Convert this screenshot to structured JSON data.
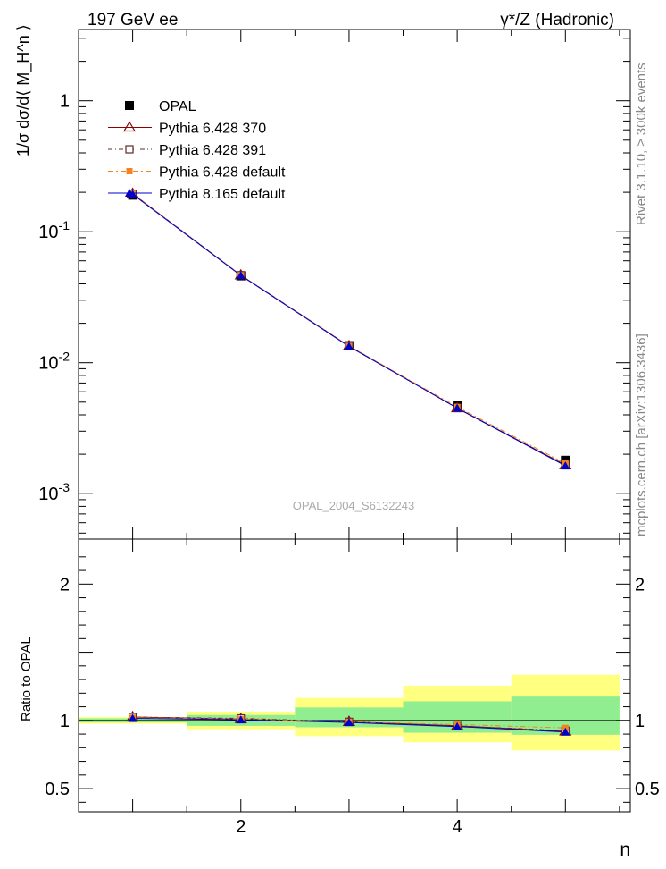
{
  "header": {
    "left": "197 GeV ee",
    "right": "γ*/Z (Hadronic)"
  },
  "side": {
    "rivet": "Rivet 3.1.10, ≥ 300k events",
    "mcplots": "mcplots.cern.ch [arXiv:1306.3436]"
  },
  "labels": {
    "ylabel_main": "1/σ dσ/d⟨ M_H^n ⟩",
    "ylabel_ratio": "Ratio to OPAL",
    "xlabel": "n",
    "analysis_id": "OPAL_2004_S6132243"
  },
  "colors": {
    "opal": "#000000",
    "py370": "#8B0000",
    "py391": "#5C2A2A",
    "py_default": "#F58220",
    "py8": "#0000CC",
    "band_inner": "#90EE90",
    "band_outer": "#FFFF80"
  },
  "chart_data": [
    {
      "type": "scatter",
      "name": "main",
      "title": "γ*/Z (Hadronic)",
      "xlabel": "n",
      "ylabel": "1/σ dσ/d⟨ M_H^n ⟩",
      "yscale": "log",
      "xlim": [
        0.5,
        5.6
      ],
      "ylim": [
        0.00045,
        3.5
      ],
      "yticks": [
        {
          "value": 1,
          "label": "1"
        },
        {
          "value": 0.1,
          "label": "10^-1"
        },
        {
          "value": 0.01,
          "label": "10^-2"
        },
        {
          "value": 0.001,
          "label": "10^-3"
        }
      ],
      "series": [
        {
          "name": "OPAL",
          "marker": "square-filled",
          "x": [
            1,
            2,
            3,
            4,
            5
          ],
          "values": [
            0.19,
            0.046,
            0.0135,
            0.0047,
            0.0018
          ]
        },
        {
          "name": "Pythia 6.428 370",
          "marker": "triangle-open",
          "x": [
            1,
            2,
            3,
            4,
            5
          ],
          "values": [
            0.195,
            0.0465,
            0.0134,
            0.0045,
            0.00165
          ]
        },
        {
          "name": "Pythia 6.428 391",
          "marker": "square-open",
          "x": [
            1,
            2,
            3,
            4,
            5
          ],
          "values": [
            0.195,
            0.0466,
            0.0134,
            0.0045,
            0.00166
          ]
        },
        {
          "name": "Pythia 6.428 default",
          "marker": "square-small",
          "x": [
            1,
            2,
            3,
            4,
            5
          ],
          "values": [
            0.194,
            0.0465,
            0.0134,
            0.0046,
            0.0017
          ]
        },
        {
          "name": "Pythia 8.165 default",
          "marker": "triangle-filled",
          "x": [
            1,
            2,
            3,
            4,
            5
          ],
          "values": [
            0.193,
            0.0463,
            0.0133,
            0.0045,
            0.00163
          ]
        }
      ]
    },
    {
      "type": "scatter",
      "name": "ratio",
      "ylabel": "Ratio to OPAL",
      "xlabel": "n",
      "xlim": [
        0.5,
        5.6
      ],
      "ylim": [
        0.33,
        2.33
      ],
      "xticks": [
        2,
        4
      ],
      "yticks": [
        0.5,
        1,
        2
      ],
      "bands": {
        "x_edges": [
          0.5,
          1.5,
          2.5,
          3.5,
          4.5,
          5.5
        ],
        "inner": [
          [
            0.985,
            1.015
          ],
          [
            0.96,
            1.04
          ],
          [
            0.95,
            1.095
          ],
          [
            0.91,
            1.14
          ],
          [
            0.895,
            1.175
          ]
        ],
        "outer": [
          [
            0.975,
            1.025
          ],
          [
            0.935,
            1.065
          ],
          [
            0.885,
            1.165
          ],
          [
            0.84,
            1.255
          ],
          [
            0.78,
            1.335
          ]
        ]
      },
      "series": [
        {
          "name": "Pythia 6.428 370",
          "x": [
            1,
            2,
            3,
            4,
            5
          ],
          "values": [
            1.025,
            1.01,
            0.99,
            0.96,
            0.92
          ]
        },
        {
          "name": "Pythia 6.428 391",
          "x": [
            1,
            2,
            3,
            4,
            5
          ],
          "values": [
            1.025,
            1.015,
            0.99,
            0.96,
            0.925
          ]
        },
        {
          "name": "Pythia 6.428 default",
          "x": [
            1,
            2,
            3,
            4,
            5
          ],
          "values": [
            1.02,
            1.01,
            0.99,
            0.97,
            0.945
          ]
        },
        {
          "name": "Pythia 8.165 default",
          "x": [
            1,
            2,
            3,
            4,
            5
          ],
          "values": [
            1.015,
            1.005,
            0.985,
            0.955,
            0.915
          ]
        }
      ]
    }
  ]
}
